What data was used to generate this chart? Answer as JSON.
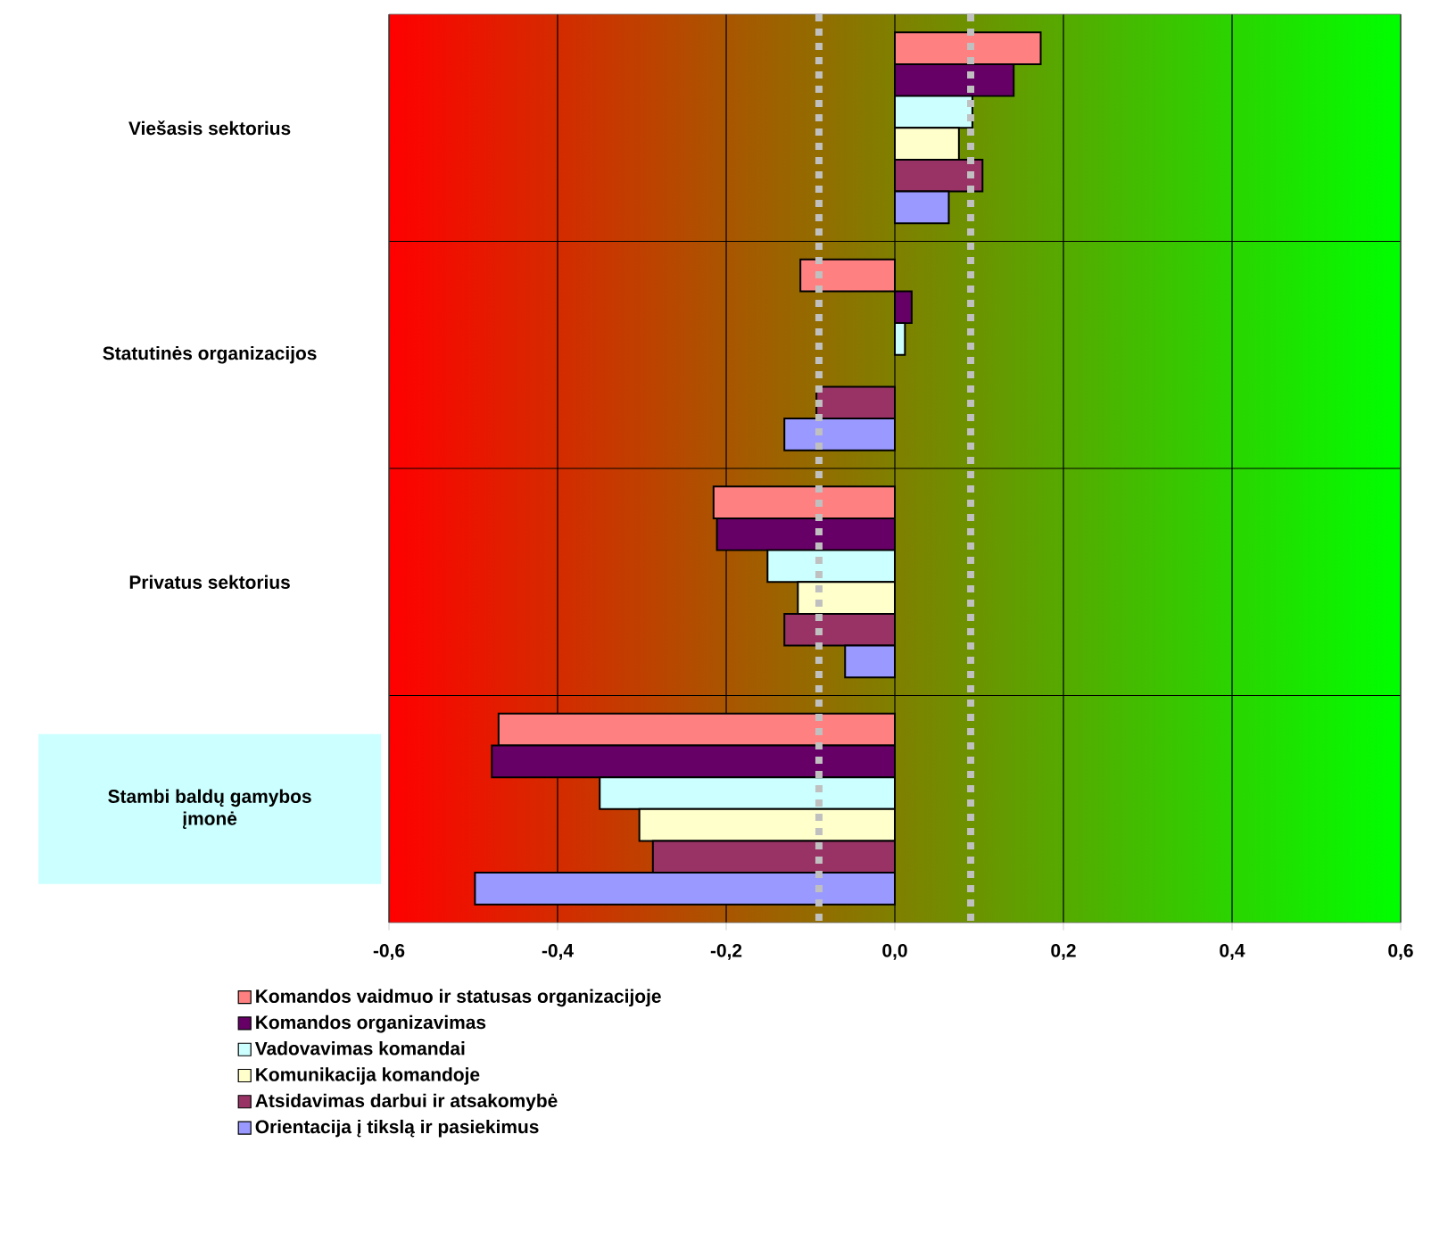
{
  "chart_data": {
    "type": "bar",
    "orientation": "horizontal",
    "categories": [
      "Viešasis sektorius",
      "Statutinės organizacijos",
      "Privatus sektorius",
      "Stambi baldų gamybos įmonė"
    ],
    "series": [
      {
        "name": "Komandos vaidmuo ir statusas organizacijoje",
        "color": "#ff8080",
        "values": [
          0.173,
          -0.112,
          -0.215,
          -0.47
        ]
      },
      {
        "name": "Komandos organizavimas",
        "color": "#660066",
        "values": [
          0.141,
          0.02,
          -0.211,
          -0.478
        ]
      },
      {
        "name": "Vadovavimas komandai",
        "color": "#ccffff",
        "values": [
          0.092,
          0.012,
          -0.151,
          -0.35
        ]
      },
      {
        "name": "Komunikacija komandoje",
        "color": "#ffffcc",
        "values": [
          0.076,
          null,
          -0.115,
          -0.303
        ]
      },
      {
        "name": "Atsidavimas darbui ir atsakomybė",
        "color": "#993366",
        "values": [
          0.104,
          -0.093,
          -0.131,
          -0.287
        ]
      },
      {
        "name": "Orientacija į tikslą ir pasiekimus",
        "color": "#9999ff",
        "values": [
          0.064,
          -0.131,
          -0.059,
          -0.498
        ]
      }
    ],
    "xlim": [
      -0.6,
      0.6
    ],
    "xticks": [
      {
        "value": -0.6,
        "label": "-0,6"
      },
      {
        "value": -0.4,
        "label": "-0,4"
      },
      {
        "value": -0.2,
        "label": "-0,2"
      },
      {
        "value": 0,
        "label": "0,0"
      },
      {
        "value": 0.2,
        "label": "0,2"
      },
      {
        "value": 0.4,
        "label": "0,4"
      },
      {
        "value": 0.6,
        "label": "0,6"
      }
    ],
    "ref_lines": [
      {
        "axis": "x",
        "value": -0.09,
        "color": "#c0c0c0",
        "line_style": "dotted"
      },
      {
        "axis": "x",
        "value": 0.09,
        "color": "#c0c0c0",
        "line_style": "dotted"
      }
    ],
    "grid": true,
    "legend": "bottom"
  }
}
